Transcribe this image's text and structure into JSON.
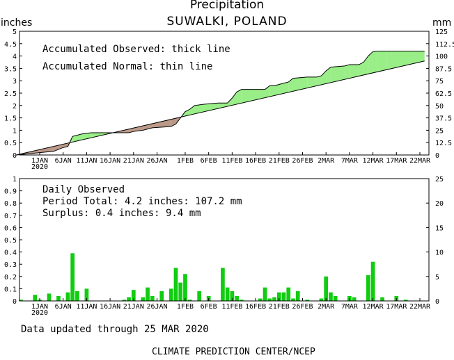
{
  "header": {
    "title": "Precipitation",
    "subtitle": "SUWALKI, POLAND",
    "unit_left": "inches",
    "unit_right": "mm"
  },
  "footer": {
    "updated": "Data updated through 25 MAR 2020",
    "credit": "CLIMATE PREDICTION CENTER/NCEP"
  },
  "chart_data": [
    {
      "type": "area",
      "annotations": [
        "Accumulated Observed: thick line",
        "Accumulated Normal: thin line"
      ],
      "ylim": [
        0,
        5
      ],
      "y2lim": [
        0,
        125
      ],
      "yticks": [
        "0",
        "0.5",
        "1",
        "1.5",
        "2",
        "2.5",
        "3",
        "3.5",
        "4",
        "4.5",
        "5"
      ],
      "y2ticks": [
        "0",
        "12.5",
        "25",
        "37.5",
        "50",
        "62.5",
        "75",
        "87.5",
        "100",
        "112.5",
        "125"
      ],
      "xlim_days": [
        0,
        86
      ],
      "xticks": [
        {
          "day": 5,
          "label": "1JAN",
          "sub": "2020"
        },
        {
          "day": 10,
          "label": "6JAN"
        },
        {
          "day": 15,
          "label": "11JAN"
        },
        {
          "day": 20,
          "label": "16JAN"
        },
        {
          "day": 25,
          "label": "21JAN"
        },
        {
          "day": 30,
          "label": "26JAN"
        },
        {
          "day": 36,
          "label": "1FEB"
        },
        {
          "day": 41,
          "label": "6FEB"
        },
        {
          "day": 46,
          "label": "11FEB"
        },
        {
          "day": 51,
          "label": "16FEB"
        },
        {
          "day": 56,
          "label": "21FEB"
        },
        {
          "day": 61,
          "label": "26FEB"
        },
        {
          "day": 66,
          "label": "2MAR"
        },
        {
          "day": 71,
          "label": "7MAR"
        },
        {
          "day": 76,
          "label": "12MAR"
        },
        {
          "day": 81,
          "label": "17MAR"
        },
        {
          "day": 86,
          "label": "22MAR"
        }
      ],
      "colors": {
        "surplus": "#99ee88",
        "deficit": "#bb9988",
        "line": "#000000"
      },
      "series": [
        {
          "name": "Accumulated Observed",
          "points": [
            [
              0,
              0
            ],
            [
              8,
              0.15
            ],
            [
              10,
              0.3
            ],
            [
              11,
              0.34
            ],
            [
              12,
              0.75
            ],
            [
              14,
              0.85
            ],
            [
              16,
              0.9
            ],
            [
              24,
              0.9
            ],
            [
              25,
              0.95
            ],
            [
              27,
              1.0
            ],
            [
              29,
              1.1
            ],
            [
              33,
              1.15
            ],
            [
              34,
              1.25
            ],
            [
              35,
              1.5
            ],
            [
              36,
              1.75
            ],
            [
              37,
              1.85
            ],
            [
              38,
              2.0
            ],
            [
              40,
              2.05
            ],
            [
              43,
              2.1
            ],
            [
              45,
              2.1
            ],
            [
              46,
              2.3
            ],
            [
              47,
              2.55
            ],
            [
              48,
              2.65
            ],
            [
              53,
              2.65
            ],
            [
              54,
              2.8
            ],
            [
              55,
              2.8
            ],
            [
              56,
              2.85
            ],
            [
              58,
              2.95
            ],
            [
              59,
              3.1
            ],
            [
              62,
              3.15
            ],
            [
              64,
              3.15
            ],
            [
              65,
              3.2
            ],
            [
              66,
              3.4
            ],
            [
              67,
              3.55
            ],
            [
              70,
              3.6
            ],
            [
              71,
              3.65
            ],
            [
              73,
              3.65
            ],
            [
              74,
              3.75
            ],
            [
              75,
              4.0
            ],
            [
              76,
              4.18
            ],
            [
              77,
              4.2
            ],
            [
              79,
              4.2
            ],
            [
              87,
              4.2
            ]
          ]
        },
        {
          "name": "Accumulated Normal",
          "points": [
            [
              0,
              0
            ],
            [
              87,
              3.8
            ]
          ]
        }
      ]
    },
    {
      "type": "bar",
      "annotations": {
        "title": "Daily Observed",
        "period_total": "Period Total:    4.2 inches:    107.2 mm",
        "surplus": "Surplus:     0.4 inches:      9.4 mm"
      },
      "ylim": [
        0,
        1
      ],
      "y2lim": [
        0,
        25
      ],
      "yticks": [
        "0",
        "0.1",
        "0.2",
        "0.3",
        "0.4",
        "0.5",
        "0.6",
        "0.7",
        "0.8",
        "0.9",
        "1"
      ],
      "y2ticks": [
        "0",
        "5",
        "10",
        "15",
        "20",
        "25"
      ],
      "bar_color": "#11cc11",
      "x_days": [
        1,
        4,
        5,
        7,
        9,
        11,
        12,
        13,
        15,
        23,
        24,
        25,
        27,
        28,
        29,
        31,
        33,
        34,
        35,
        36,
        37,
        39,
        41,
        44,
        45,
        46,
        47,
        48,
        52,
        53,
        54,
        55,
        56,
        57,
        58,
        59,
        60,
        62,
        65,
        66,
        67,
        68,
        71,
        72,
        75,
        76,
        78,
        81,
        83
      ],
      "values": [
        0.01,
        0.05,
        0.01,
        0.06,
        0.04,
        0.07,
        0.39,
        0.08,
        0.1,
        0.01,
        0.03,
        0.09,
        0.03,
        0.11,
        0.04,
        0.08,
        0.1,
        0.27,
        0.15,
        0.22,
        0.01,
        0.08,
        0.04,
        0.27,
        0.11,
        0.08,
        0.04,
        0.01,
        0.02,
        0.11,
        0.02,
        0.03,
        0.07,
        0.07,
        0.11,
        0.02,
        0.08,
        0.01,
        0.02,
        0.2,
        0.07,
        0.04,
        0.04,
        0.03,
        0.21,
        0.32,
        0.03,
        0.04,
        0.01
      ]
    }
  ]
}
